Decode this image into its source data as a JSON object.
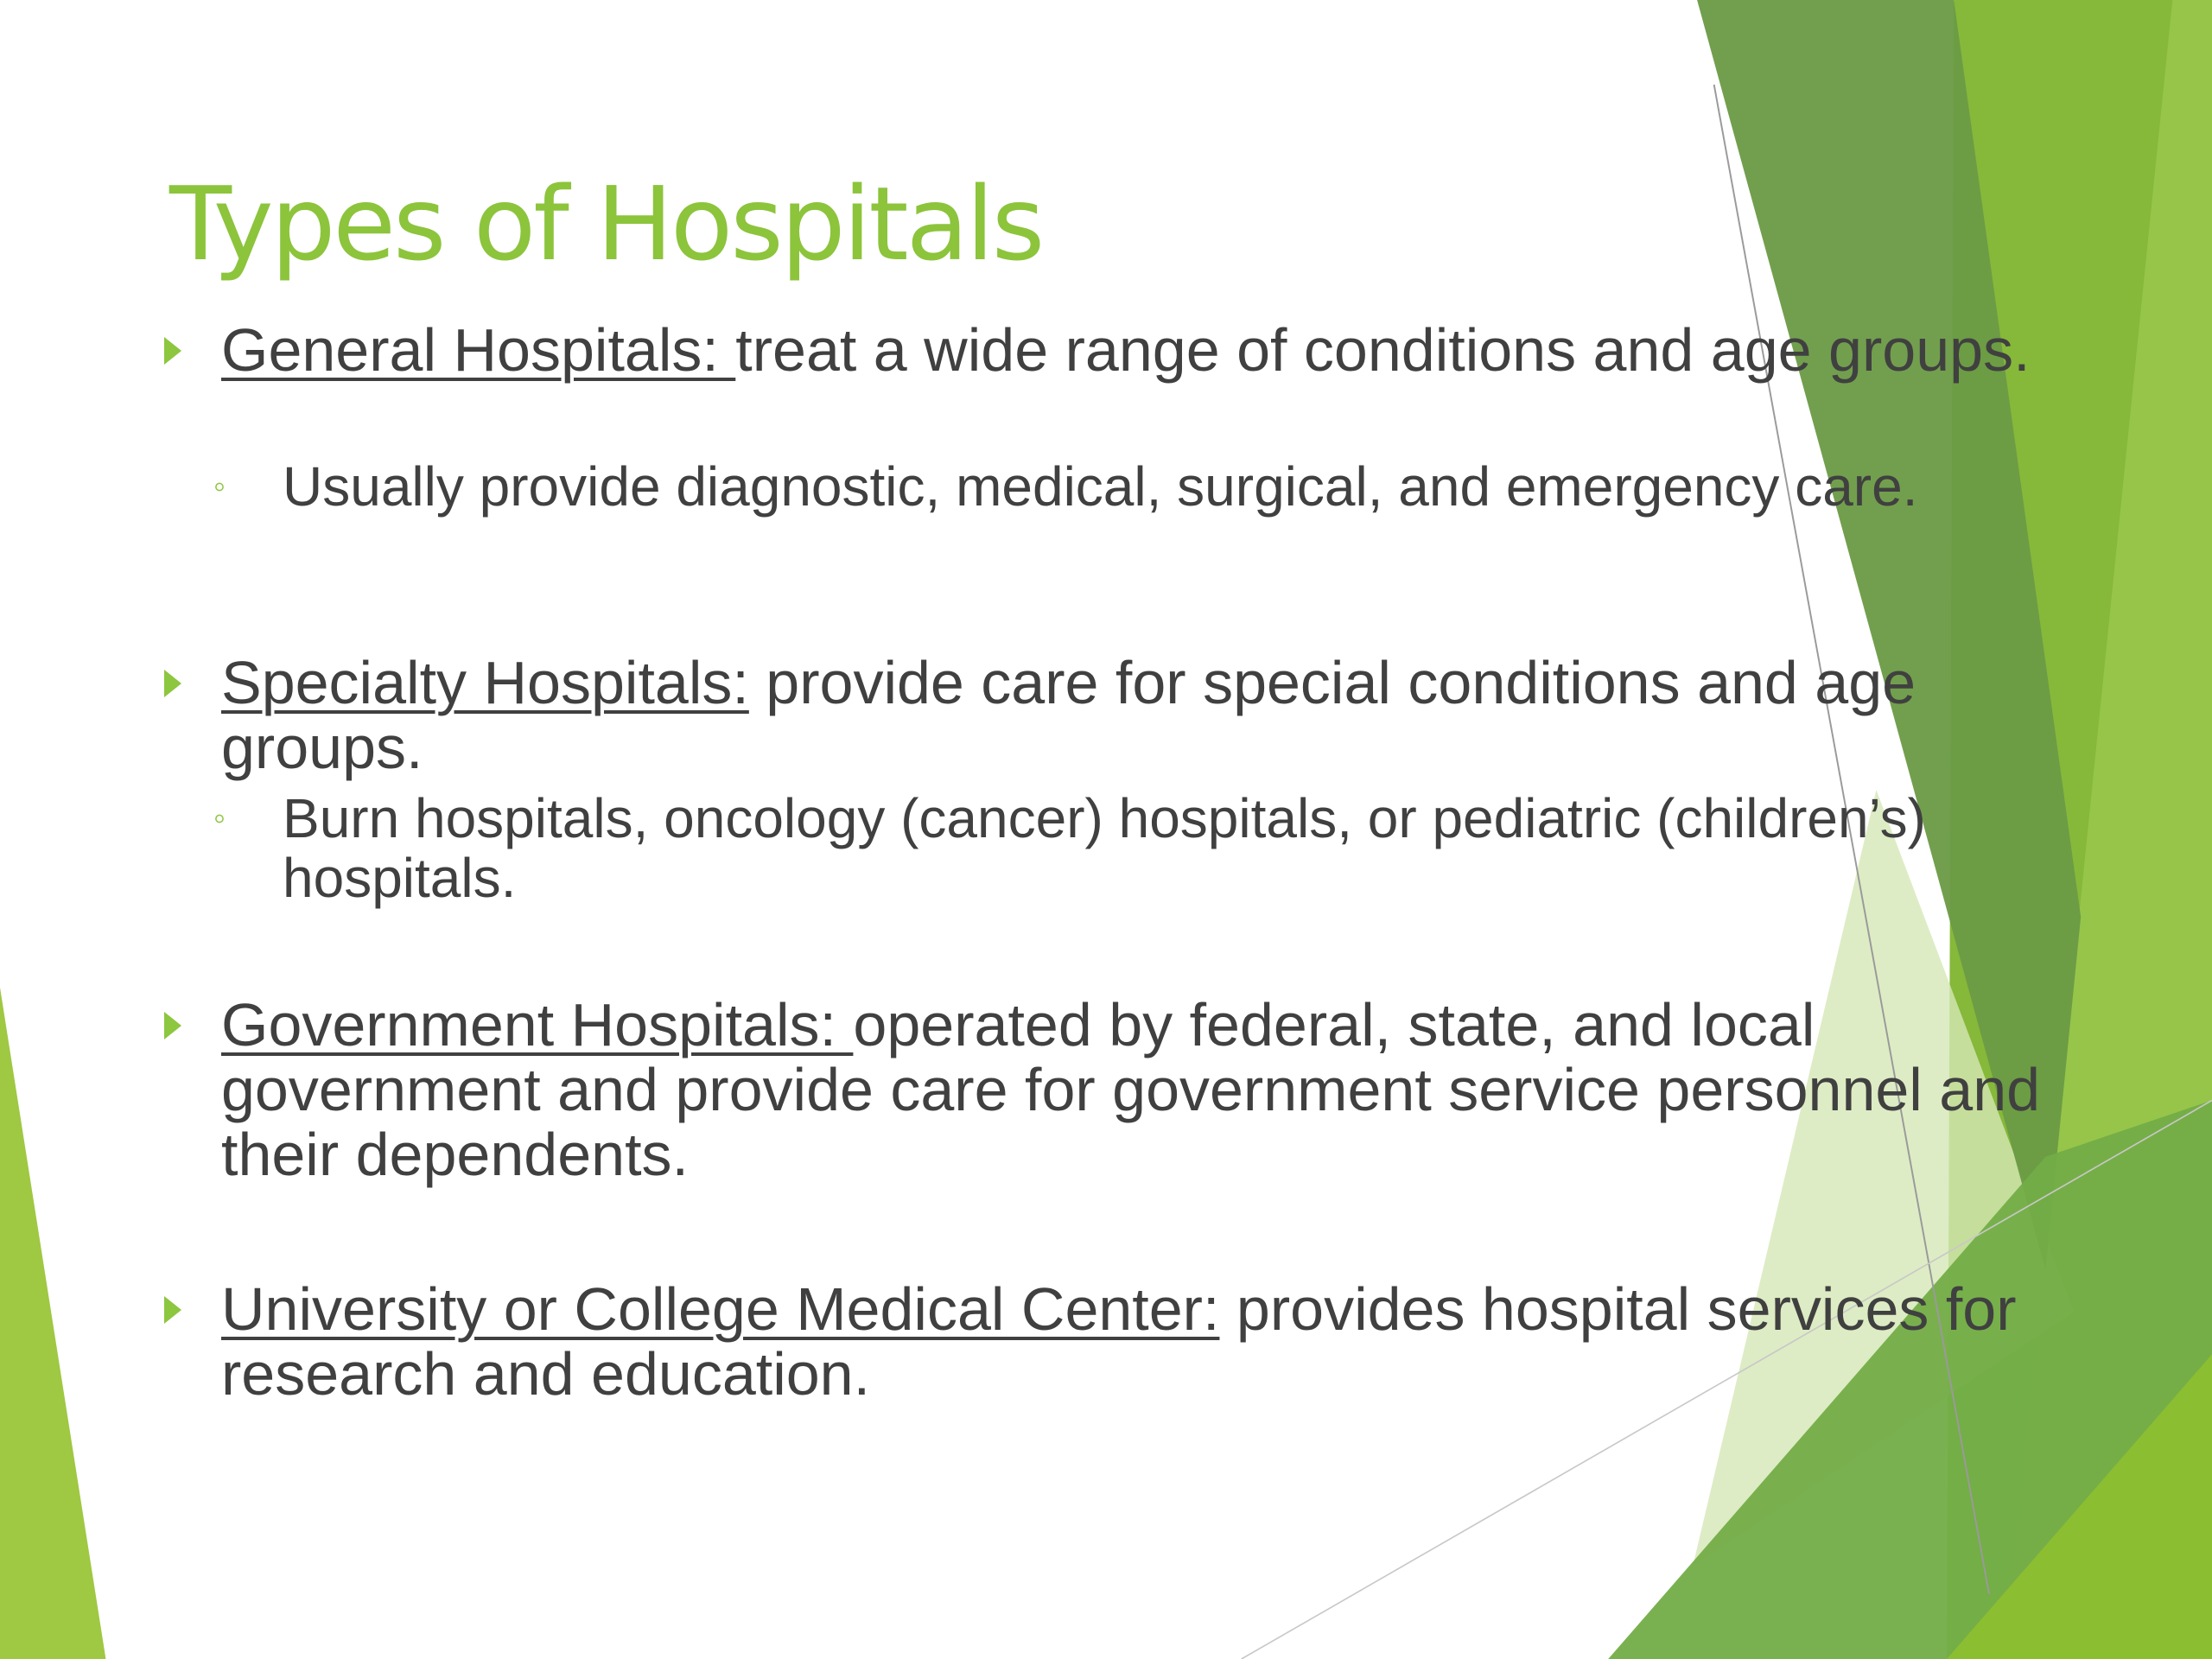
{
  "slide": {
    "title": "Types of Hospitals",
    "accent_color": "#8cc43c",
    "text_color": "#404040",
    "bullets": [
      {
        "term": "General Hospitals: ",
        "text": "treat a wide range of conditions and age groups.",
        "sub": "Usually provide diagnostic, medical, surgical, and emergency care."
      },
      {
        "term": "Specialty Hospitals:",
        "text": " provide care for special conditions and age groups.",
        "sub": "Burn hospitals, oncology (cancer) hospitals, or pediatric (children’s) hospitals."
      },
      {
        "term": "Government Hospitals: ",
        "text": "operated by federal, state, and local government and provide care for government service personnel and their dependents."
      },
      {
        "term": "University or College Medical Center:",
        "text": " provides hospital services for research and education."
      }
    ]
  }
}
